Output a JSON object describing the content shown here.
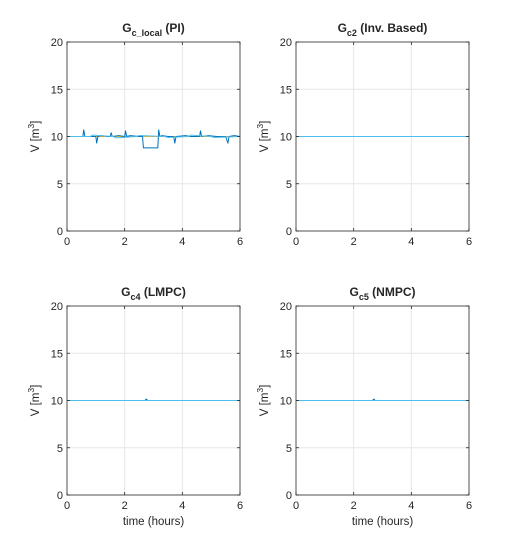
{
  "chart_data": [
    {
      "type": "line",
      "title": "G",
      "title_sub": "c_local",
      "title_suffix": " (PI)",
      "ylabel": "V [m",
      "ylabel_sup": "3",
      "ylabel_suffix": "]",
      "xlabel": "",
      "xlim": [
        0,
        6
      ],
      "ylim": [
        0,
        20
      ],
      "xticks": [
        0,
        2,
        4,
        6
      ],
      "yticks": [
        0,
        5,
        10,
        15,
        20
      ],
      "grid": true,
      "series": [
        {
          "color": "#EDB120",
          "x": [
            0,
            6
          ],
          "y": [
            10,
            10
          ]
        },
        {
          "color": "#0072BD",
          "x": [
            0,
            0.35,
            0.55,
            0.58,
            0.62,
            0.9,
            1.0,
            1.03,
            1.07,
            1.2,
            1.4,
            1.5,
            1.53,
            1.57,
            1.8,
            2.0,
            2.03,
            2.07,
            2.2,
            2.5,
            2.62,
            2.65,
            3.15,
            3.18,
            3.22,
            3.3,
            3.5,
            3.7,
            3.74,
            3.78,
            4.1,
            4.3,
            4.6,
            4.63,
            4.67,
            4.9,
            5.2,
            5.5,
            5.58,
            5.62,
            5.8,
            6.0
          ],
          "y": [
            10.0,
            10.0,
            10.0,
            10.7,
            10.0,
            10.0,
            10.0,
            9.3,
            10.0,
            10.1,
            10.0,
            10.0,
            10.4,
            10.0,
            10.1,
            10.0,
            10.6,
            10.0,
            10.1,
            10.0,
            10.0,
            8.8,
            8.8,
            10.7,
            10.0,
            10.1,
            10.0,
            10.0,
            9.3,
            10.0,
            10.1,
            10.0,
            10.0,
            10.6,
            10.0,
            10.1,
            10.0,
            10.0,
            9.3,
            10.0,
            10.1,
            10.0
          ]
        },
        {
          "color": "#4DBEEE",
          "x": [
            0,
            0.8,
            0.9,
            1.6,
            1.7,
            2.4,
            2.5,
            3.4,
            3.5,
            4.2,
            4.3,
            5.0,
            5.1,
            6.0
          ],
          "y": [
            10.0,
            10.0,
            10.15,
            10.0,
            9.85,
            10.0,
            10.1,
            10.0,
            9.9,
            10.0,
            10.15,
            10.0,
            9.9,
            10.0
          ]
        }
      ]
    },
    {
      "type": "line",
      "title": "G",
      "title_sub": "c2",
      "title_suffix": " (Inv. Based)",
      "ylabel": "V [m",
      "ylabel_sup": "3",
      "ylabel_suffix": "]",
      "xlabel": "",
      "xlim": [
        0,
        6
      ],
      "ylim": [
        0,
        20
      ],
      "xticks": [
        0,
        2,
        4,
        6
      ],
      "yticks": [
        0,
        5,
        10,
        15,
        20
      ],
      "grid": true,
      "series": [
        {
          "color": "#0072BD",
          "x": [
            0,
            6
          ],
          "y": [
            10,
            10
          ]
        },
        {
          "color": "#77AC30",
          "x": [
            0,
            6
          ],
          "y": [
            10,
            10
          ]
        },
        {
          "color": "#4DBEEE",
          "x": [
            0,
            6
          ],
          "y": [
            10,
            10
          ]
        }
      ]
    },
    {
      "type": "line",
      "title": "G",
      "title_sub": "c4",
      "title_suffix": " (LMPC)",
      "ylabel": "V [m",
      "ylabel_sup": "3",
      "ylabel_suffix": "]",
      "xlabel": "time (hours)",
      "xlim": [
        0,
        6
      ],
      "ylim": [
        0,
        20
      ],
      "xticks": [
        0,
        2,
        4,
        6
      ],
      "yticks": [
        0,
        5,
        10,
        15,
        20
      ],
      "grid": true,
      "series": [
        {
          "color": "#0072BD",
          "x": [
            0,
            1.5,
            2.7,
            2.75,
            2.8,
            4.2,
            6
          ],
          "y": [
            10,
            10,
            10,
            10.15,
            10,
            10,
            10
          ]
        },
        {
          "color": "#77AC30",
          "x": [
            0,
            6
          ],
          "y": [
            10,
            10
          ]
        },
        {
          "color": "#4DBEEE",
          "x": [
            0,
            6
          ],
          "y": [
            10,
            10
          ]
        }
      ]
    },
    {
      "type": "line",
      "title": "G",
      "title_sub": "c5",
      "title_suffix": " (NMPC)",
      "ylabel": "V [m",
      "ylabel_sup": "3",
      "ylabel_suffix": "]",
      "xlabel": "time (hours)",
      "xlim": [
        0,
        6
      ],
      "ylim": [
        0,
        20
      ],
      "xticks": [
        0,
        2,
        4,
        6
      ],
      "yticks": [
        0,
        5,
        10,
        15,
        20
      ],
      "grid": true,
      "series": [
        {
          "color": "#0072BD",
          "x": [
            0,
            1.5,
            2.65,
            2.7,
            2.75,
            4.2,
            6
          ],
          "y": [
            10,
            10,
            10,
            10.15,
            10,
            10,
            10
          ]
        },
        {
          "color": "#77AC30",
          "x": [
            0,
            6
          ],
          "y": [
            10,
            10
          ]
        },
        {
          "color": "#4DBEEE",
          "x": [
            0,
            6
          ],
          "y": [
            10,
            10
          ]
        }
      ]
    }
  ]
}
